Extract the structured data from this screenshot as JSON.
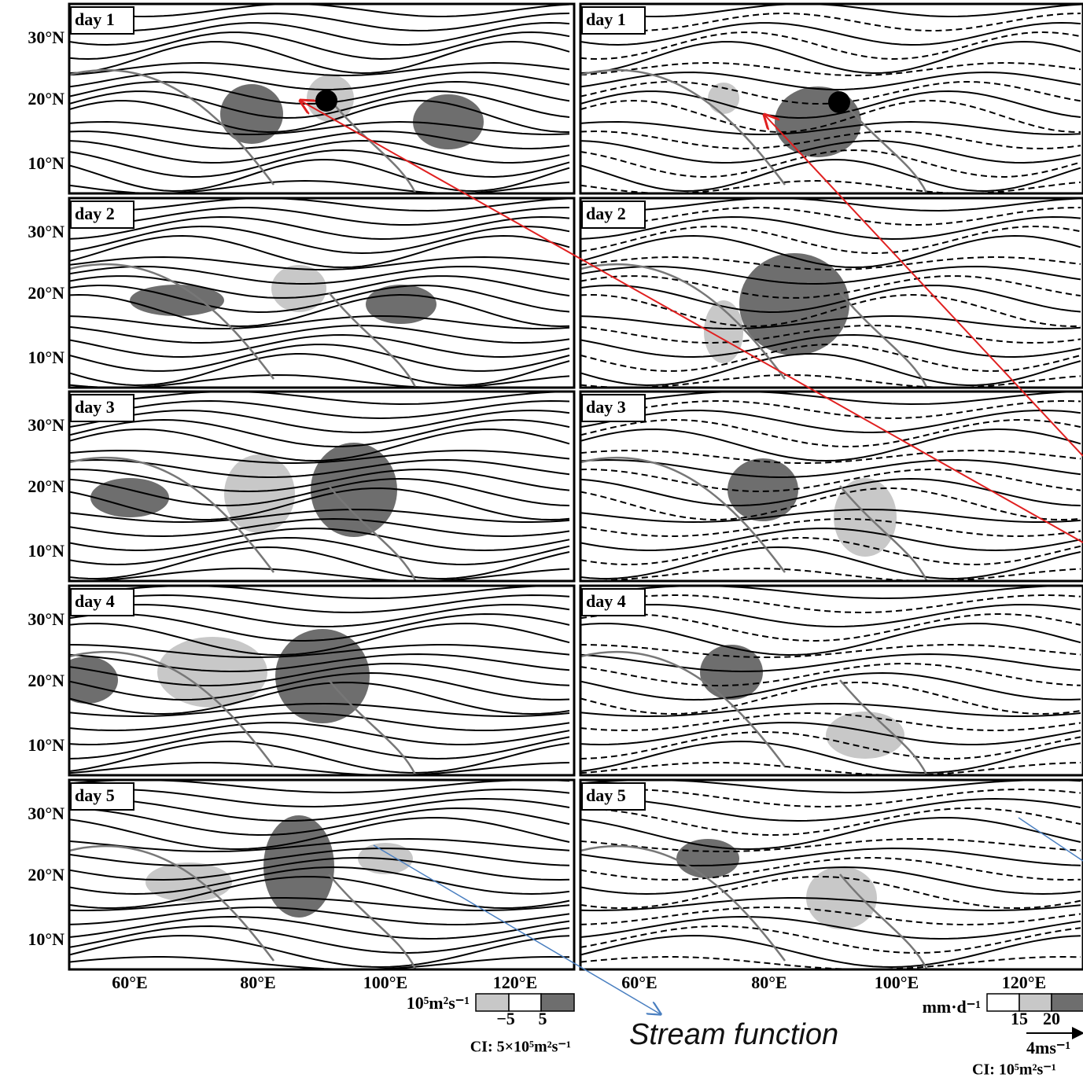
{
  "panels": {
    "left": [
      "day 1",
      "day 2",
      "day 3",
      "day 4",
      "day 5"
    ],
    "right": [
      "day 1",
      "day 2",
      "day 3",
      "day 4",
      "day 5"
    ]
  },
  "latitude_labels": [
    "30°N",
    "20°N",
    "10°N"
  ],
  "longitude_labels": {
    "left": [
      "60°E",
      "80°E",
      "100°E",
      "120°E"
    ],
    "right": [
      "60°E",
      "80°E",
      "100°E",
      "120°E"
    ]
  },
  "legend_left": {
    "unit": "10⁵m²s⁻¹",
    "ticks": [
      "−5",
      "5"
    ],
    "ci": "CI: 5×10⁵m²s⁻¹"
  },
  "legend_right": {
    "unit": "mm·d⁻¹",
    "ticks": [
      "15",
      "20"
    ],
    "vector": "4ms⁻¹",
    "ci": "CI: 10⁵m²s⁻¹"
  },
  "annotation": "Stream function"
}
